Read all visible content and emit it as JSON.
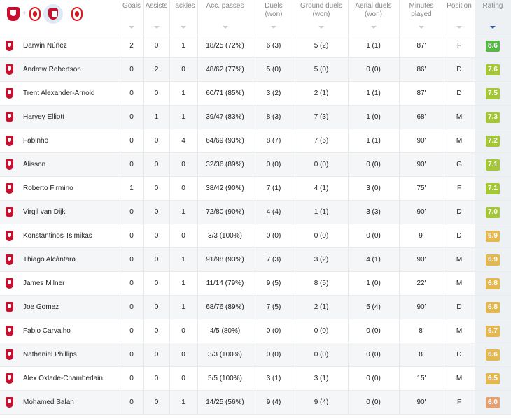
{
  "columns": {
    "goals": "Goals",
    "assists": "Assists",
    "tackles": "Tackles",
    "acc_passes": "Acc. passes",
    "duels": "Duels",
    "duels_sub": "(won)",
    "ground_duels": "Ground duels",
    "ground_duels_sub": "(won)",
    "aerial_duels": "Aerial duels",
    "aerial_duels_sub": "(won)",
    "minutes": "Minutes",
    "minutes_sub": "played",
    "position": "Position",
    "rating": "Rating"
  },
  "team_filter": {
    "plus": "+"
  },
  "colors": {
    "rating_green": "#57b847",
    "rating_lime": "#a5c639",
    "rating_yellow": "#e3b850",
    "rating_orange": "#e3a276",
    "liverpool_red": "#c8102e"
  },
  "players": [
    {
      "name": "Darwin Núñez",
      "goals": "2",
      "assists": "0",
      "tackles": "1",
      "passes": "18/25 (72%)",
      "duels": "6 (3)",
      "ground": "5 (2)",
      "aerial": "1 (1)",
      "minutes": "87'",
      "position": "F",
      "rating": "8.6",
      "rating_color": "#57b847"
    },
    {
      "name": "Andrew Robertson",
      "goals": "0",
      "assists": "2",
      "tackles": "0",
      "passes": "48/62 (77%)",
      "duels": "5 (0)",
      "ground": "5 (0)",
      "aerial": "0 (0)",
      "minutes": "86'",
      "position": "D",
      "rating": "7.6",
      "rating_color": "#a5c639"
    },
    {
      "name": "Trent Alexander-Arnold",
      "goals": "0",
      "assists": "0",
      "tackles": "1",
      "passes": "60/71 (85%)",
      "duels": "3 (2)",
      "ground": "2 (1)",
      "aerial": "1 (1)",
      "minutes": "87'",
      "position": "D",
      "rating": "7.5",
      "rating_color": "#a5c639"
    },
    {
      "name": "Harvey Elliott",
      "goals": "0",
      "assists": "1",
      "tackles": "1",
      "passes": "39/47 (83%)",
      "duels": "8 (3)",
      "ground": "7 (3)",
      "aerial": "1 (0)",
      "minutes": "68'",
      "position": "M",
      "rating": "7.3",
      "rating_color": "#a5c639"
    },
    {
      "name": "Fabinho",
      "goals": "0",
      "assists": "0",
      "tackles": "4",
      "passes": "64/69 (93%)",
      "duels": "8 (7)",
      "ground": "7 (6)",
      "aerial": "1 (1)",
      "minutes": "90'",
      "position": "M",
      "rating": "7.2",
      "rating_color": "#a5c639"
    },
    {
      "name": "Alisson",
      "goals": "0",
      "assists": "0",
      "tackles": "0",
      "passes": "32/36 (89%)",
      "duels": "0 (0)",
      "ground": "0 (0)",
      "aerial": "0 (0)",
      "minutes": "90'",
      "position": "G",
      "rating": "7.1",
      "rating_color": "#a5c639"
    },
    {
      "name": "Roberto Firmino",
      "goals": "1",
      "assists": "0",
      "tackles": "0",
      "passes": "38/42 (90%)",
      "duels": "7 (1)",
      "ground": "4 (1)",
      "aerial": "3 (0)",
      "minutes": "75'",
      "position": "F",
      "rating": "7.1",
      "rating_color": "#a5c639"
    },
    {
      "name": "Virgil van Dijk",
      "goals": "0",
      "assists": "0",
      "tackles": "1",
      "passes": "72/80 (90%)",
      "duels": "4 (4)",
      "ground": "1 (1)",
      "aerial": "3 (3)",
      "minutes": "90'",
      "position": "D",
      "rating": "7.0",
      "rating_color": "#a5c639"
    },
    {
      "name": "Konstantinos Tsimikas",
      "goals": "0",
      "assists": "0",
      "tackles": "0",
      "passes": "3/3 (100%)",
      "duels": "0 (0)",
      "ground": "0 (0)",
      "aerial": "0 (0)",
      "minutes": "9'",
      "position": "D",
      "rating": "6.9",
      "rating_color": "#e3b850"
    },
    {
      "name": "Thiago Alcântara",
      "goals": "0",
      "assists": "0",
      "tackles": "1",
      "passes": "91/98 (93%)",
      "duels": "7 (3)",
      "ground": "3 (2)",
      "aerial": "4 (1)",
      "minutes": "90'",
      "position": "M",
      "rating": "6.9",
      "rating_color": "#e3b850"
    },
    {
      "name": "James Milner",
      "goals": "0",
      "assists": "0",
      "tackles": "1",
      "passes": "11/14 (79%)",
      "duels": "9 (5)",
      "ground": "8 (5)",
      "aerial": "1 (0)",
      "minutes": "22'",
      "position": "M",
      "rating": "6.8",
      "rating_color": "#e3b850"
    },
    {
      "name": "Joe Gomez",
      "goals": "0",
      "assists": "0",
      "tackles": "1",
      "passes": "68/76 (89%)",
      "duels": "7 (5)",
      "ground": "2 (1)",
      "aerial": "5 (4)",
      "minutes": "90'",
      "position": "D",
      "rating": "6.8",
      "rating_color": "#e3b850"
    },
    {
      "name": "Fabio Carvalho",
      "goals": "0",
      "assists": "0",
      "tackles": "0",
      "passes": "4/5 (80%)",
      "duels": "0 (0)",
      "ground": "0 (0)",
      "aerial": "0 (0)",
      "minutes": "8'",
      "position": "M",
      "rating": "6.7",
      "rating_color": "#e3b850"
    },
    {
      "name": "Nathaniel Phillips",
      "goals": "0",
      "assists": "0",
      "tackles": "0",
      "passes": "3/3 (100%)",
      "duels": "0 (0)",
      "ground": "0 (0)",
      "aerial": "0 (0)",
      "minutes": "8'",
      "position": "D",
      "rating": "6.6",
      "rating_color": "#e3b850"
    },
    {
      "name": "Alex Oxlade-Chamberlain",
      "goals": "0",
      "assists": "0",
      "tackles": "0",
      "passes": "5/5 (100%)",
      "duels": "3 (1)",
      "ground": "3 (1)",
      "aerial": "0 (0)",
      "minutes": "15'",
      "position": "M",
      "rating": "6.5",
      "rating_color": "#e3b850"
    },
    {
      "name": "Mohamed Salah",
      "goals": "0",
      "assists": "0",
      "tackles": "1",
      "passes": "14/25 (56%)",
      "duels": "9 (4)",
      "ground": "9 (4)",
      "aerial": "0 (0)",
      "minutes": "90'",
      "position": "F",
      "rating": "6.0",
      "rating_color": "#e3a276"
    }
  ]
}
